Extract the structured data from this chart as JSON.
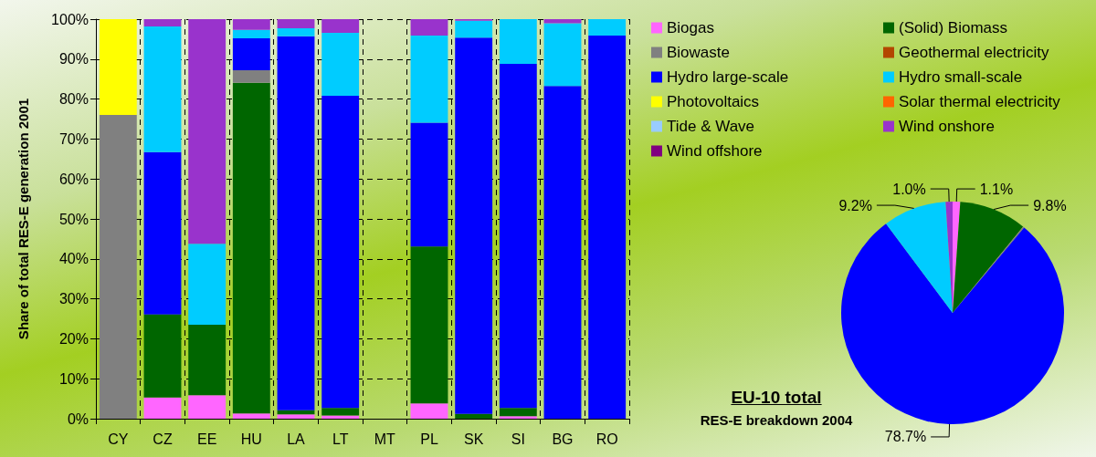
{
  "chart_data": [
    {
      "type": "bar",
      "stacked": true,
      "ylabel": "Share of total RES-E generation 2001",
      "categories": [
        "CY",
        "CZ",
        "EE",
        "HU",
        "LA",
        "LT",
        "MT",
        "PL",
        "SK",
        "SI",
        "BG",
        "RO"
      ],
      "series": [
        {
          "name": "Biogas",
          "color": "#ff66ff",
          "values": [
            null,
            5.3,
            5.9,
            1.3,
            1.1,
            0.8,
            null,
            3.8,
            null,
            0.6,
            null,
            null
          ]
        },
        {
          "name": "(Solid) Biomass",
          "color": "#006600",
          "values": [
            null,
            20.8,
            17.6,
            82.8,
            1.0,
            1.9,
            null,
            39.3,
            1.2,
            2.1,
            null,
            null
          ]
        },
        {
          "name": "Biowaste",
          "color": "#808080",
          "values": [
            76,
            null,
            null,
            3.1,
            null,
            null,
            null,
            null,
            null,
            null,
            null,
            null
          ]
        },
        {
          "name": "Geothermal electricity",
          "color": "#b34700",
          "values": [
            null,
            null,
            null,
            null,
            null,
            null,
            null,
            null,
            null,
            null,
            null,
            null
          ]
        },
        {
          "name": "Hydro large-scale",
          "color": "#0000ff",
          "values": [
            null,
            40.6,
            null,
            8.0,
            93.6,
            78.1,
            null,
            31.0,
            94.2,
            86.1,
            83.3,
            95.9
          ]
        },
        {
          "name": "Hydro small-scale",
          "color": "#00ccff",
          "values": [
            null,
            31.5,
            20.3,
            2.1,
            2.0,
            15.8,
            null,
            21.8,
            4.2,
            11.2,
            15.7,
            4.1
          ]
        },
        {
          "name": "Photovoltaics",
          "color": "#ffff00",
          "values": [
            24,
            null,
            null,
            null,
            null,
            null,
            null,
            null,
            null,
            null,
            null,
            null
          ]
        },
        {
          "name": "Solar thermal electricity",
          "color": "#ff6600",
          "values": [
            null,
            null,
            null,
            null,
            null,
            null,
            null,
            null,
            null,
            null,
            null,
            null
          ]
        },
        {
          "name": "Tide & Wave",
          "color": "#99ccff",
          "values": [
            null,
            null,
            null,
            null,
            null,
            null,
            null,
            null,
            null,
            null,
            null,
            null
          ]
        },
        {
          "name": "Wind onshore",
          "color": "#9933cc",
          "values": [
            null,
            1.8,
            56.2,
            2.7,
            2.3,
            3.4,
            null,
            4.1,
            0.4,
            null,
            1.0,
            null
          ]
        },
        {
          "name": "Wind offshore",
          "color": "#800080",
          "values": [
            null,
            null,
            null,
            null,
            null,
            null,
            null,
            null,
            null,
            null,
            null,
            null
          ]
        }
      ],
      "ylim": [
        0,
        100
      ],
      "yticks": [
        {
          "value": 0,
          "label": "0%"
        },
        {
          "value": 10,
          "label": "10%"
        },
        {
          "value": 20,
          "label": "20%"
        },
        {
          "value": 30,
          "label": "30%"
        },
        {
          "value": 40,
          "label": "40%"
        },
        {
          "value": 50,
          "label": "50%"
        },
        {
          "value": 60,
          "label": "60%"
        },
        {
          "value": 70,
          "label": "70%"
        },
        {
          "value": 80,
          "label": "80%"
        },
        {
          "value": 90,
          "label": "90%"
        },
        {
          "value": 100,
          "label": "100%"
        }
      ],
      "grid": true,
      "legend": "top right"
    },
    {
      "type": "pie",
      "title": "EU-10 total",
      "subtitle": "RES-E breakdown 2004",
      "categories": [
        null,
        null,
        null,
        null,
        null,
        null
      ],
      "values": [
        1.1,
        9.8,
        0.2,
        78.7,
        9.2,
        1.0
      ],
      "colors": [
        "#ff66ff",
        "#006600",
        "#808080",
        "#0000ff",
        "#00ccff",
        "#9933cc"
      ],
      "value_labels": [
        "1.1%",
        "9.8%",
        null,
        "78.7%",
        "9.2%",
        "1.0%"
      ]
    }
  ]
}
